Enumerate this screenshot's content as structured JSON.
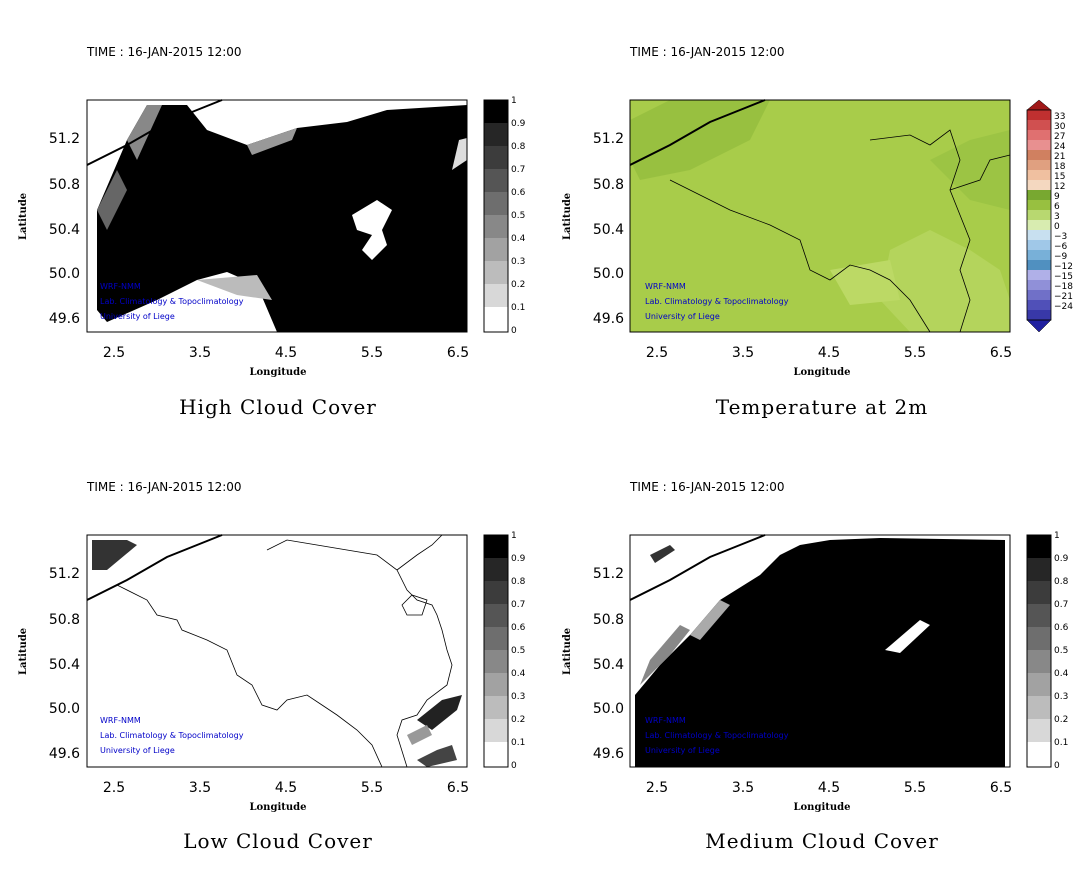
{
  "panels": [
    {
      "id": "high-cloud",
      "time_label": "TIME : 16-JAN-2015 12:00",
      "title": "High Cloud Cover",
      "xlabel": "Longitude",
      "ylabel": "Latitude",
      "xticks": [
        "2.5",
        "3.5",
        "4.5",
        "5.5",
        "6.5"
      ],
      "yticks": [
        "51.2",
        "50.8",
        "50.4",
        "50.0",
        "49.6"
      ],
      "credits": [
        "WRF-NMM",
        "Lab. Climatology & Topoclimatology",
        "University of Liege"
      ],
      "colorbar_ticks": [
        "1",
        "0.9",
        "0.8",
        "0.7",
        "0.6",
        "0.5",
        "0.4",
        "0.3",
        "0.2",
        "0.1",
        "0"
      ]
    },
    {
      "id": "temperature-2m",
      "time_label": "TIME : 16-JAN-2015 12:00",
      "title": "Temperature at 2m",
      "xlabel": "Longitude",
      "ylabel": "Latitude",
      "xticks": [
        "2.5",
        "3.5",
        "4.5",
        "5.5",
        "6.5"
      ],
      "yticks": [
        "51.2",
        "50.8",
        "50.4",
        "50.0",
        "49.6"
      ],
      "credits": [
        "WRF-NMM",
        "Lab. Climatology & Topoclimatology",
        "University of Liege"
      ],
      "colorbar_ticks": [
        "33",
        "30",
        "27",
        "24",
        "21",
        "18",
        "15",
        "12",
        "9",
        "6",
        "3",
        "0",
        "−3",
        "−6",
        "−9",
        "−12",
        "−15",
        "−18",
        "−21",
        "−24"
      ]
    },
    {
      "id": "low-cloud",
      "time_label": "TIME : 16-JAN-2015 12:00",
      "title": "Low Cloud Cover",
      "xlabel": "Longitude",
      "ylabel": "Latitude",
      "xticks": [
        "2.5",
        "3.5",
        "4.5",
        "5.5",
        "6.5"
      ],
      "yticks": [
        "51.2",
        "50.8",
        "50.4",
        "50.0",
        "49.6"
      ],
      "credits": [
        "WRF-NMM",
        "Lab. Climatology & Topoclimatology",
        "University of Liege"
      ],
      "colorbar_ticks": [
        "1",
        "0.9",
        "0.8",
        "0.7",
        "0.6",
        "0.5",
        "0.4",
        "0.3",
        "0.2",
        "0.1",
        "0"
      ]
    },
    {
      "id": "medium-cloud",
      "time_label": "TIME : 16-JAN-2015 12:00",
      "title": "Medium Cloud Cover",
      "xlabel": "Longitude",
      "ylabel": "Latitude",
      "xticks": [
        "2.5",
        "3.5",
        "4.5",
        "5.5",
        "6.5"
      ],
      "yticks": [
        "51.2",
        "50.8",
        "50.4",
        "50.0",
        "49.6"
      ],
      "credits": [
        "WRF-NMM",
        "Lab. Climatology & Topoclimatology",
        "University of Liege"
      ],
      "colorbar_ticks": [
        "1",
        "0.9",
        "0.8",
        "0.7",
        "0.6",
        "0.5",
        "0.4",
        "0.3",
        "0.2",
        "0.1",
        "0"
      ]
    }
  ],
  "colors": {
    "cloud_dark": "#000000",
    "cloud_clear": "#ffffff",
    "temp_green": "#a8cc4a",
    "temp_green_light": "#bcd965",
    "credit_blue": "#0000c8"
  }
}
